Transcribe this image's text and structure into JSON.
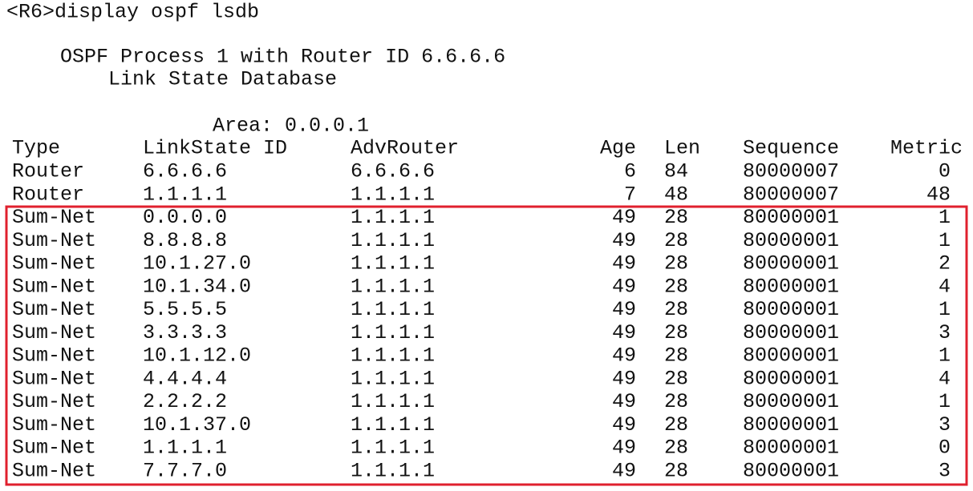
{
  "command": "<R6>display ospf lsdb",
  "header": {
    "process": "OSPF Process 1 with Router ID 6.6.6.6",
    "title": "Link State Database",
    "area": "Area: 0.0.0.1"
  },
  "table": {
    "columns": [
      "Type",
      "LinkState ID",
      "AdvRouter",
      "Age",
      "Len",
      "Sequence",
      "Metric"
    ],
    "rows": [
      [
        "Router",
        "6.6.6.6",
        "6.6.6.6",
        "6",
        "84",
        "80000007",
        "0"
      ],
      [
        "Router",
        "1.1.1.1",
        "1.1.1.1",
        "7",
        "48",
        "80000007",
        "48"
      ],
      [
        "Sum-Net",
        "0.0.0.0",
        "1.1.1.1",
        "49",
        "28",
        "80000001",
        "1"
      ],
      [
        "Sum-Net",
        "8.8.8.8",
        "1.1.1.1",
        "49",
        "28",
        "80000001",
        "1"
      ],
      [
        "Sum-Net",
        "10.1.27.0",
        "1.1.1.1",
        "49",
        "28",
        "80000001",
        "2"
      ],
      [
        "Sum-Net",
        "10.1.34.0",
        "1.1.1.1",
        "49",
        "28",
        "80000001",
        "4"
      ],
      [
        "Sum-Net",
        "5.5.5.5",
        "1.1.1.1",
        "49",
        "28",
        "80000001",
        "1"
      ],
      [
        "Sum-Net",
        "3.3.3.3",
        "1.1.1.1",
        "49",
        "28",
        "80000001",
        "3"
      ],
      [
        "Sum-Net",
        "10.1.12.0",
        "1.1.1.1",
        "49",
        "28",
        "80000001",
        "1"
      ],
      [
        "Sum-Net",
        "4.4.4.4",
        "1.1.1.1",
        "49",
        "28",
        "80000001",
        "4"
      ],
      [
        "Sum-Net",
        "2.2.2.2",
        "1.1.1.1",
        "49",
        "28",
        "80000001",
        "1"
      ],
      [
        "Sum-Net",
        "10.1.37.0",
        "1.1.1.1",
        "49",
        "28",
        "80000001",
        "3"
      ],
      [
        "Sum-Net",
        "1.1.1.1",
        "1.1.1.1",
        "49",
        "28",
        "80000001",
        "0"
      ],
      [
        "Sum-Net",
        "7.7.7.0",
        "1.1.1.1",
        "49",
        "28",
        "80000001",
        "3"
      ]
    ]
  }
}
